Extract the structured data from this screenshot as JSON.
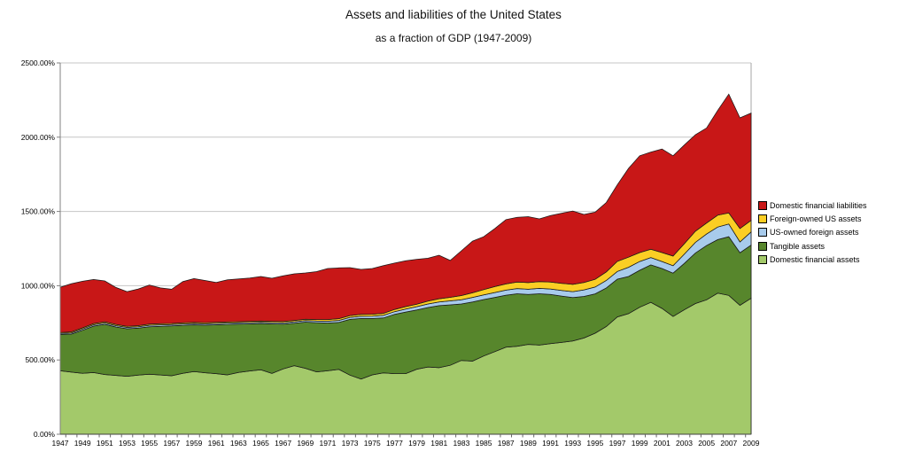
{
  "chart_data": {
    "type": "area",
    "stacked": true,
    "title": "Assets and liabilities of the United States",
    "subtitle": "as a fraction of GDP (1947-2009)",
    "x_start": 1947,
    "x_end": 2009,
    "grid": true,
    "legend_position": "right",
    "y_axis": {
      "min": 0,
      "max": 2500,
      "step": 500,
      "labels": [
        "0.00%",
        "500.00%",
        "1000.00%",
        "1500.00%",
        "2000.00%",
        "2500.00%"
      ]
    },
    "x_tick_labels": [
      "1947",
      "1949",
      "1951",
      "1953",
      "1955",
      "1957",
      "1959",
      "1961",
      "1963",
      "1965",
      "1967",
      "1969",
      "1971",
      "1973",
      "1975",
      "1977",
      "1979",
      "1981",
      "1983",
      "1985",
      "1987",
      "1989",
      "1991",
      "1993",
      "1995",
      "1997",
      "1999",
      "2001",
      "2003",
      "2005",
      "2007",
      "2009"
    ],
    "series": [
      {
        "name": "Domestic financial assets",
        "slug": "domestic-financial-assets",
        "color": "#a3c96a",
        "values": [
          427,
          418,
          410,
          415,
          402,
          396,
          390,
          398,
          404,
          399,
          394,
          410,
          422,
          414,
          408,
          400,
          416,
          426,
          434,
          410,
          440,
          462,
          444,
          420,
          427,
          437,
          398,
          372,
          400,
          413,
          408,
          408,
          438,
          453,
          448,
          464,
          497,
          492,
          527,
          556,
          586,
          592,
          605,
          600,
          610,
          618,
          628,
          648,
          680,
          725,
          790,
          812,
          855,
          888,
          847,
          793,
          838,
          880,
          905,
          950,
          935,
          868,
          915
        ]
      },
      {
        "name": "Tangible assets",
        "slug": "tangible-assets",
        "color": "#57862c",
        "values": [
          245,
          256,
          290,
          313,
          338,
          326,
          320,
          316,
          320,
          328,
          335,
          323,
          314,
          320,
          329,
          339,
          325,
          317,
          311,
          333,
          301,
          285,
          311,
          331,
          322,
          316,
          375,
          407,
          379,
          370,
          399,
          415,
          399,
          400,
          418,
          407,
          380,
          399,
          380,
          365,
          350,
          354,
          336,
          346,
          331,
          312,
          292,
          280,
          265,
          260,
          254,
          250,
          249,
          252,
          269,
          292,
          312,
          340,
          365,
          360,
          395,
          354,
          358
        ]
      },
      {
        "name": "US-owned foreign assets",
        "slug": "us-owned-foreign-assets",
        "color": "#a8cbec",
        "values": [
          7,
          8,
          8,
          9,
          9,
          9,
          9,
          9,
          9,
          9,
          9,
          9,
          9,
          9,
          9,
          9,
          9,
          9,
          9,
          9,
          9,
          10,
          10,
          11,
          12,
          13,
          14,
          15,
          16,
          17,
          18,
          20,
          22,
          24,
          25,
          27,
          29,
          30,
          31,
          33,
          34,
          35,
          35,
          36,
          37,
          38,
          40,
          44,
          46,
          50,
          52,
          62,
          59,
          50,
          47,
          50,
          62,
          72,
          78,
          85,
          85,
          73,
          89
        ]
      },
      {
        "name": "Foreign-owned US assets",
        "slug": "foreign-owned-us-assets",
        "color": "#fbce24",
        "values": [
          6,
          7,
          8,
          8,
          8,
          8,
          8,
          8,
          8,
          8,
          8,
          8,
          8,
          8,
          8,
          8,
          8,
          8,
          8,
          8,
          9,
          9,
          9,
          10,
          11,
          12,
          12,
          13,
          13,
          14,
          15,
          16,
          17,
          19,
          21,
          24,
          28,
          31,
          36,
          40,
          42,
          44,
          45,
          46,
          47,
          48,
          49,
          50,
          52,
          58,
          68,
          68,
          60,
          55,
          60,
          65,
          70,
          75,
          74,
          80,
          75,
          90,
          78
        ]
      },
      {
        "name": "Domestic financial liabilities",
        "slug": "domestic-financial-liabilities",
        "color": "#c81717",
        "values": [
          305,
          325,
          314,
          297,
          275,
          249,
          233,
          247,
          264,
          241,
          230,
          278,
          295,
          284,
          268,
          284,
          288,
          292,
          300,
          290,
          307,
          314,
          312,
          323,
          344,
          342,
          323,
          303,
          308,
          321,
          312,
          309,
          302,
          289,
          293,
          248,
          301,
          348,
          356,
          391,
          433,
          435,
          444,
          422,
          447,
          472,
          494,
          458,
          452,
          467,
          516,
          598,
          652,
          655,
          697,
          675,
          665,
          650,
          640,
          705,
          800,
          745,
          722
        ]
      }
    ],
    "legend_order_top_to_bottom": [
      "Domestic financial liabilities",
      "Foreign-owned US assets",
      "US-owned foreign assets",
      "Tangible assets",
      "Domestic financial assets"
    ],
    "style_colors": {
      "gridline": "#c6c6c6",
      "plot_border_right_top": "#b3b3b3",
      "axis_left": "#808080",
      "axis_bottom": "#404040",
      "tick": "#666666",
      "area_outline": "#1a1a1a"
    }
  }
}
